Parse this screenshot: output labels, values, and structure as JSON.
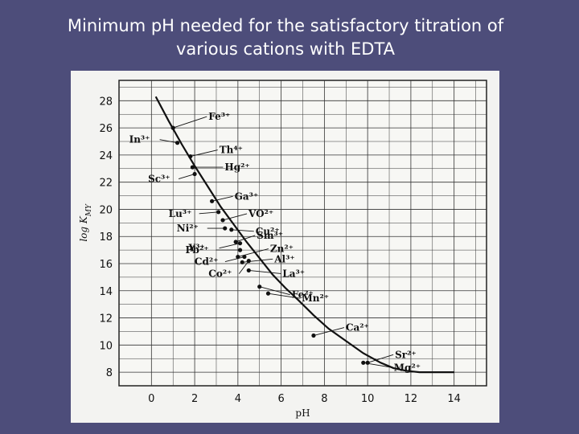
{
  "title": {
    "line1": "Minimum pH needed for the satisfactory titration of",
    "line2": "various cations with EDTA"
  },
  "chart_data": {
    "type": "line",
    "xlabel": "pH",
    "ylabel": "log K",
    "ylabel_subscript": "MY",
    "xlim": [
      -1.5,
      15.5
    ],
    "ylim": [
      7,
      29.5
    ],
    "grid": true,
    "x_ticks": [
      0,
      2,
      4,
      6,
      8,
      10,
      12,
      14
    ],
    "y_ticks": [
      8,
      10,
      12,
      14,
      16,
      18,
      20,
      22,
      24,
      26,
      28
    ],
    "curve": {
      "x": [
        0.2,
        0.8,
        1.4,
        2.0,
        2.6,
        3.2,
        3.8,
        4.4,
        5.0,
        5.6,
        6.2,
        6.8,
        7.5,
        8.2,
        9.0,
        9.8,
        10.6,
        11.2,
        11.8,
        12.4,
        13.0,
        14.0
      ],
      "y": [
        28.3,
        26.5,
        24.8,
        23.2,
        21.7,
        20.2,
        18.9,
        17.6,
        16.4,
        15.2,
        14.2,
        13.3,
        12.2,
        11.2,
        10.3,
        9.4,
        8.7,
        8.3,
        8.1,
        8.0,
        8.0,
        8.0
      ]
    },
    "annotations": [
      {
        "label": "Fe³⁺",
        "x": 1.0,
        "y": 26.0
      },
      {
        "label": "In³⁺",
        "x": 1.2,
        "y": 24.9
      },
      {
        "label": "Th⁴⁺",
        "x": 1.8,
        "y": 23.9
      },
      {
        "label": "Hg²⁺",
        "x": 1.9,
        "y": 23.1
      },
      {
        "label": "Sc³⁺",
        "x": 2.0,
        "y": 22.6
      },
      {
        "label": "Ga³⁺",
        "x": 2.8,
        "y": 20.6
      },
      {
        "label": "Lu³⁺",
        "x": 3.1,
        "y": 19.8
      },
      {
        "label": "VO²⁺",
        "x": 3.3,
        "y": 19.2
      },
      {
        "label": "Ni²⁺",
        "x": 3.4,
        "y": 18.6
      },
      {
        "label": "Cu²⁺",
        "x": 3.7,
        "y": 18.5
      },
      {
        "label": "Sm³⁺",
        "x": 3.9,
        "y": 17.6
      },
      {
        "label": "Y³⁺",
        "x": 4.1,
        "y": 17.5
      },
      {
        "label": "Zn²⁺",
        "x": 4.0,
        "y": 16.5
      },
      {
        "label": "Pb²⁺",
        "x": 4.1,
        "y": 17.0
      },
      {
        "label": "Al³⁺",
        "x": 4.2,
        "y": 16.1
      },
      {
        "label": "La³⁺",
        "x": 4.5,
        "y": 15.5
      },
      {
        "label": "Cd²⁺",
        "x": 4.3,
        "y": 16.5
      },
      {
        "label": "Co²⁺",
        "x": 4.5,
        "y": 16.2
      },
      {
        "label": "Fe²⁺",
        "x": 5.0,
        "y": 14.3
      },
      {
        "label": "Mn²⁺",
        "x": 5.4,
        "y": 13.8
      },
      {
        "label": "Ca²⁺",
        "x": 7.5,
        "y": 10.7
      },
      {
        "label": "Sr²⁺",
        "x": 10.0,
        "y": 8.7
      },
      {
        "label": "Mg²⁺",
        "x": 9.8,
        "y": 8.7
      }
    ]
  }
}
